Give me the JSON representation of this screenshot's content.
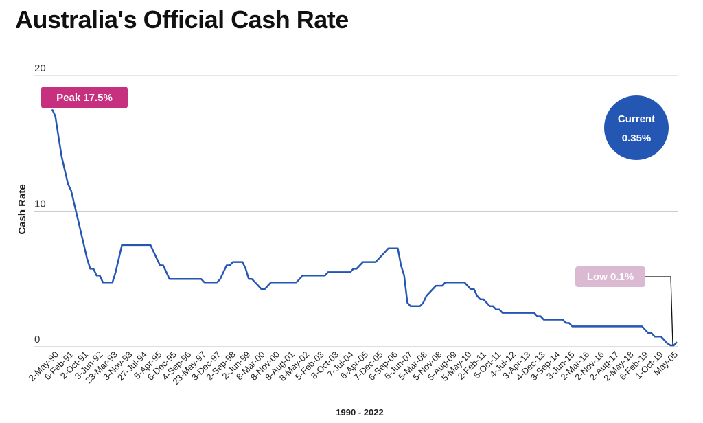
{
  "chart_data": {
    "type": "line",
    "title": "Australia's Official Cash Rate",
    "xlabel": "1990 - 2022",
    "ylabel": "Cash Rate",
    "ylim": [
      0,
      20
    ],
    "yticks": [
      0,
      10,
      20
    ],
    "grid": true,
    "line_color": "#2456b4",
    "x_tick_labels": [
      "2-May-90",
      "6-Feb-91",
      "2-Oct-91",
      "3-Jun-92",
      "23-Mar-93",
      "3-Nov-93",
      "27-Jul-94",
      "5-Apr-95",
      "6-Dec-95",
      "4-Sep-96",
      "23-May-97",
      "3-Dec-97",
      "2-Sep-98",
      "2-Jun-99",
      "8-Mar-00",
      "8-Nov-00",
      "8-Aug-01",
      "8-May-02",
      "5-Feb-03",
      "8-Oct-03",
      "7-Jul-04",
      "6-Apr-05",
      "7-Dec-05",
      "6-Sep-06",
      "6-Jun-07",
      "5-Mar-08",
      "5-Nov-08",
      "5-Aug-09",
      "5-May-10",
      "2-Feb-11",
      "5-Oct-11",
      "4-Jul-12",
      "3-Apr-13",
      "4-Dec-13",
      "3-Sep-14",
      "3-Jun-15",
      "2-Mar-16",
      "2-Nov-16",
      "2-Aug-17",
      "2-May-18",
      "6-Feb-19",
      "1-Oct-19",
      "May-05"
    ],
    "series": [
      {
        "values": [
          17.5,
          17.0,
          15.5,
          14.0,
          13.0,
          12.0,
          11.5,
          10.5,
          9.5,
          8.5,
          7.5,
          6.5,
          5.75,
          5.75,
          5.25,
          5.25,
          4.75,
          4.75,
          4.75,
          4.75,
          5.5,
          6.5,
          7.5,
          7.5,
          7.5,
          7.5,
          7.5,
          7.5,
          7.5,
          7.5,
          7.5,
          7.5,
          7.0,
          6.5,
          6.0,
          6.0,
          5.5,
          5.0,
          5.0,
          5.0,
          5.0,
          5.0,
          5.0,
          5.0,
          5.0,
          5.0,
          5.0,
          5.0,
          4.75,
          4.75,
          4.75,
          4.75,
          4.75,
          5.0,
          5.5,
          6.0,
          6.0,
          6.25,
          6.25,
          6.25,
          6.25,
          5.75,
          5.0,
          5.0,
          4.75,
          4.5,
          4.25,
          4.25,
          4.5,
          4.75,
          4.75,
          4.75,
          4.75,
          4.75,
          4.75,
          4.75,
          4.75,
          4.75,
          5.0,
          5.25,
          5.25,
          5.25,
          5.25,
          5.25,
          5.25,
          5.25,
          5.25,
          5.5,
          5.5,
          5.5,
          5.5,
          5.5,
          5.5,
          5.5,
          5.5,
          5.75,
          5.75,
          6.0,
          6.25,
          6.25,
          6.25,
          6.25,
          6.25,
          6.5,
          6.75,
          7.0,
          7.25,
          7.25,
          7.25,
          7.25,
          6.0,
          5.25,
          3.25,
          3.0,
          3.0,
          3.0,
          3.0,
          3.25,
          3.75,
          4.0,
          4.25,
          4.5,
          4.5,
          4.5,
          4.75,
          4.75,
          4.75,
          4.75,
          4.75,
          4.75,
          4.75,
          4.5,
          4.25,
          4.25,
          3.75,
          3.5,
          3.5,
          3.25,
          3.0,
          3.0,
          2.75,
          2.75,
          2.5,
          2.5,
          2.5,
          2.5,
          2.5,
          2.5,
          2.5,
          2.5,
          2.5,
          2.5,
          2.5,
          2.25,
          2.25,
          2.0,
          2.0,
          2.0,
          2.0,
          2.0,
          2.0,
          2.0,
          1.75,
          1.75,
          1.5,
          1.5,
          1.5,
          1.5,
          1.5,
          1.5,
          1.5,
          1.5,
          1.5,
          1.5,
          1.5,
          1.5,
          1.5,
          1.5,
          1.5,
          1.5,
          1.5,
          1.5,
          1.5,
          1.5,
          1.5,
          1.5,
          1.5,
          1.25,
          1.0,
          1.0,
          0.75,
          0.75,
          0.75,
          0.5,
          0.25,
          0.1,
          0.1,
          0.35
        ]
      }
    ],
    "annotations": {
      "peak": {
        "text": "Peak 17.5%",
        "value": 17.5,
        "color": "#c6307f"
      },
      "current": {
        "line1": "Current",
        "line2": "0.35%",
        "value": 0.35,
        "color": "#2456b4"
      },
      "low": {
        "text": "Low 0.1%",
        "value": 0.1,
        "color": "#dbb9d2"
      }
    }
  }
}
